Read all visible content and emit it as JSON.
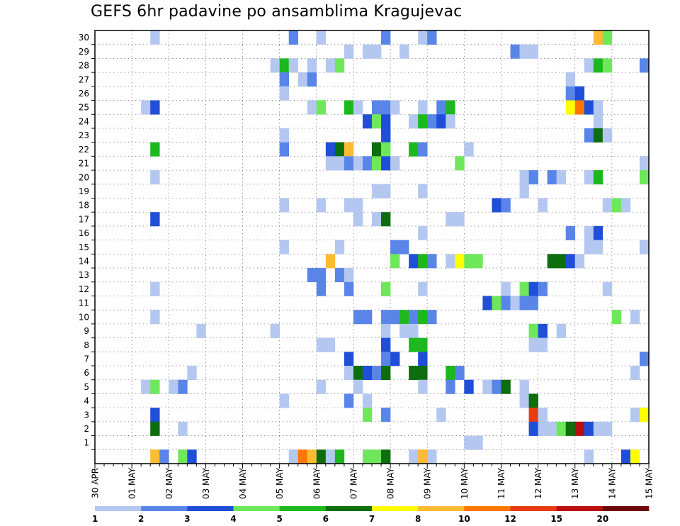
{
  "chart_data": {
    "type": "heatmap",
    "title": "GEFS 6hr padavine po ansamblima Kragujevac",
    "xlabel": "",
    "ylabel": "",
    "y_categories": [
      "",
      "1",
      "2",
      "3",
      "4",
      "5",
      "6",
      "7",
      "8",
      "9",
      "10",
      "11",
      "12",
      "13",
      "14",
      "15",
      "16",
      "17",
      "18",
      "19",
      "20",
      "21",
      "22",
      "23",
      "24",
      "25",
      "26",
      "27",
      "28",
      "29",
      "30"
    ],
    "x_tick_labels": [
      "30 APR",
      "01 MAY",
      "02 MAY",
      "03 MAY",
      "04 MAY",
      "05 MAY",
      "06 MAY",
      "07 MAY",
      "08 MAY",
      "09 MAY",
      "10 MAY",
      "11 MAY",
      "12 MAY",
      "13 MAY",
      "14 MAY",
      "15 MAY"
    ],
    "x_steps_per_day": 4,
    "x_range_steps": [
      0,
      60
    ],
    "grid": true,
    "colorbar": {
      "placement": "bottom",
      "labels": [
        "1",
        "2",
        "3",
        "4",
        "5",
        "6",
        "7",
        "8",
        "10",
        "12",
        "15",
        "20"
      ],
      "colors": [
        "#b4c7f0",
        "#5a85e8",
        "#1f4fd8",
        "#6ee85a",
        "#1db81d",
        "#0c6e0c",
        "#ffff00",
        "#ffbb33",
        "#ff7700",
        "#e83b10",
        "#b80f0f",
        "#6e0909"
      ]
    },
    "cells": [
      [
        6,
        30,
        1
      ],
      [
        21,
        30,
        2
      ],
      [
        24,
        30,
        1
      ],
      [
        31,
        30,
        2
      ],
      [
        35,
        30,
        1
      ],
      [
        36,
        30,
        2
      ],
      [
        54,
        30,
        8
      ],
      [
        55,
        30,
        4
      ],
      [
        27,
        29,
        1
      ],
      [
        29,
        29,
        1
      ],
      [
        30,
        29,
        1
      ],
      [
        33,
        29,
        1
      ],
      [
        45,
        29,
        2
      ],
      [
        46,
        29,
        1
      ],
      [
        47,
        29,
        1
      ],
      [
        19,
        28,
        1
      ],
      [
        20,
        28,
        5
      ],
      [
        21,
        28,
        1
      ],
      [
        23,
        28,
        1
      ],
      [
        25,
        28,
        1
      ],
      [
        26,
        28,
        4
      ],
      [
        53,
        28,
        1
      ],
      [
        54,
        28,
        5
      ],
      [
        55,
        28,
        4
      ],
      [
        59,
        28,
        2
      ],
      [
        20,
        27,
        2
      ],
      [
        22,
        27,
        1
      ],
      [
        23,
        27,
        2
      ],
      [
        51,
        27,
        1
      ],
      [
        20,
        26,
        1
      ],
      [
        51,
        26,
        2
      ],
      [
        52,
        26,
        3
      ],
      [
        5,
        25,
        1
      ],
      [
        6,
        25,
        3
      ],
      [
        23,
        25,
        1
      ],
      [
        24,
        25,
        4
      ],
      [
        27,
        25,
        5
      ],
      [
        28,
        25,
        1
      ],
      [
        30,
        25,
        2
      ],
      [
        31,
        25,
        2
      ],
      [
        32,
        25,
        1
      ],
      [
        35,
        25,
        1
      ],
      [
        37,
        25,
        2
      ],
      [
        38,
        25,
        5
      ],
      [
        51,
        25,
        7
      ],
      [
        52,
        25,
        9
      ],
      [
        53,
        25,
        3
      ],
      [
        54,
        25,
        1
      ],
      [
        29,
        24,
        3
      ],
      [
        30,
        24,
        4
      ],
      [
        31,
        24,
        3
      ],
      [
        34,
        24,
        1
      ],
      [
        35,
        24,
        5
      ],
      [
        36,
        24,
        2
      ],
      [
        37,
        24,
        3
      ],
      [
        38,
        24,
        1
      ],
      [
        54,
        24,
        1
      ],
      [
        20,
        23,
        1
      ],
      [
        31,
        23,
        3
      ],
      [
        53,
        23,
        2
      ],
      [
        54,
        23,
        6
      ],
      [
        55,
        23,
        1
      ],
      [
        6,
        22,
        5
      ],
      [
        20,
        22,
        2
      ],
      [
        25,
        22,
        3
      ],
      [
        26,
        22,
        6
      ],
      [
        27,
        22,
        8
      ],
      [
        30,
        22,
        6
      ],
      [
        31,
        22,
        4
      ],
      [
        34,
        22,
        5
      ],
      [
        35,
        22,
        2
      ],
      [
        40,
        22,
        1
      ],
      [
        25,
        21,
        1
      ],
      [
        26,
        21,
        1
      ],
      [
        27,
        21,
        2
      ],
      [
        28,
        21,
        1
      ],
      [
        29,
        21,
        2
      ],
      [
        30,
        21,
        4
      ],
      [
        31,
        21,
        3
      ],
      [
        32,
        21,
        1
      ],
      [
        39,
        21,
        4
      ],
      [
        59,
        21,
        1
      ],
      [
        6,
        20,
        1
      ],
      [
        46,
        20,
        1
      ],
      [
        47,
        20,
        2
      ],
      [
        49,
        20,
        2
      ],
      [
        50,
        20,
        1
      ],
      [
        53,
        20,
        1
      ],
      [
        54,
        20,
        5
      ],
      [
        59,
        20,
        4
      ],
      [
        30,
        19,
        1
      ],
      [
        31,
        19,
        1
      ],
      [
        35,
        19,
        1
      ],
      [
        46,
        19,
        1
      ],
      [
        20,
        18,
        1
      ],
      [
        24,
        18,
        1
      ],
      [
        27,
        18,
        1
      ],
      [
        28,
        18,
        1
      ],
      [
        43,
        18,
        3
      ],
      [
        44,
        18,
        2
      ],
      [
        48,
        18,
        1
      ],
      [
        55,
        18,
        1
      ],
      [
        56,
        18,
        4
      ],
      [
        57,
        18,
        1
      ],
      [
        6,
        17,
        3
      ],
      [
        28,
        17,
        1
      ],
      [
        30,
        17,
        1
      ],
      [
        31,
        17,
        6
      ],
      [
        38,
        17,
        1
      ],
      [
        39,
        17,
        1
      ],
      [
        35,
        16,
        1
      ],
      [
        51,
        16,
        2
      ],
      [
        53,
        16,
        1
      ],
      [
        54,
        16,
        3
      ],
      [
        20,
        15,
        1
      ],
      [
        26,
        15,
        1
      ],
      [
        32,
        15,
        2
      ],
      [
        33,
        15,
        2
      ],
      [
        53,
        15,
        1
      ],
      [
        54,
        15,
        1
      ],
      [
        59,
        15,
        1
      ],
      [
        25,
        14,
        8
      ],
      [
        32,
        14,
        4
      ],
      [
        34,
        14,
        3
      ],
      [
        35,
        14,
        5
      ],
      [
        36,
        14,
        2
      ],
      [
        38,
        14,
        1
      ],
      [
        39,
        14,
        7
      ],
      [
        40,
        14,
        4
      ],
      [
        41,
        14,
        4
      ],
      [
        49,
        14,
        6
      ],
      [
        50,
        14,
        6
      ],
      [
        51,
        14,
        3
      ],
      [
        52,
        14,
        1
      ],
      [
        23,
        13,
        2
      ],
      [
        24,
        13,
        2
      ],
      [
        26,
        13,
        2
      ],
      [
        27,
        13,
        1
      ],
      [
        6,
        12,
        1
      ],
      [
        24,
        12,
        2
      ],
      [
        27,
        12,
        2
      ],
      [
        31,
        12,
        4
      ],
      [
        35,
        12,
        1
      ],
      [
        44,
        12,
        1
      ],
      [
        46,
        12,
        4
      ],
      [
        47,
        12,
        3
      ],
      [
        48,
        12,
        2
      ],
      [
        55,
        12,
        1
      ],
      [
        42,
        11,
        3
      ],
      [
        43,
        11,
        4
      ],
      [
        44,
        11,
        2
      ],
      [
        45,
        11,
        1
      ],
      [
        46,
        11,
        2
      ],
      [
        47,
        11,
        2
      ],
      [
        6,
        10,
        1
      ],
      [
        28,
        10,
        2
      ],
      [
        29,
        10,
        2
      ],
      [
        31,
        10,
        2
      ],
      [
        32,
        10,
        2
      ],
      [
        33,
        10,
        5
      ],
      [
        34,
        10,
        2
      ],
      [
        35,
        10,
        5
      ],
      [
        36,
        10,
        2
      ],
      [
        56,
        10,
        4
      ],
      [
        58,
        10,
        1
      ],
      [
        11,
        9,
        1
      ],
      [
        19,
        9,
        1
      ],
      [
        31,
        9,
        1
      ],
      [
        33,
        9,
        1
      ],
      [
        34,
        9,
        1
      ],
      [
        47,
        9,
        4
      ],
      [
        48,
        9,
        3
      ],
      [
        50,
        9,
        1
      ],
      [
        24,
        8,
        1
      ],
      [
        25,
        8,
        1
      ],
      [
        31,
        8,
        3
      ],
      [
        34,
        8,
        5
      ],
      [
        35,
        8,
        5
      ],
      [
        47,
        8,
        1
      ],
      [
        48,
        8,
        1
      ],
      [
        27,
        7,
        3
      ],
      [
        31,
        7,
        2
      ],
      [
        32,
        7,
        3
      ],
      [
        35,
        7,
        3
      ],
      [
        59,
        7,
        2
      ],
      [
        10,
        6,
        1
      ],
      [
        27,
        6,
        1
      ],
      [
        28,
        6,
        6
      ],
      [
        29,
        6,
        3
      ],
      [
        30,
        6,
        2
      ],
      [
        31,
        6,
        6
      ],
      [
        34,
        6,
        6
      ],
      [
        35,
        6,
        6
      ],
      [
        38,
        6,
        5
      ],
      [
        39,
        6,
        2
      ],
      [
        58,
        6,
        1
      ],
      [
        5,
        5,
        1
      ],
      [
        6,
        5,
        4
      ],
      [
        8,
        5,
        1
      ],
      [
        9,
        5,
        2
      ],
      [
        24,
        5,
        1
      ],
      [
        28,
        5,
        1
      ],
      [
        35,
        5,
        1
      ],
      [
        38,
        5,
        2
      ],
      [
        40,
        5,
        3
      ],
      [
        42,
        5,
        1
      ],
      [
        43,
        5,
        2
      ],
      [
        44,
        5,
        6
      ],
      [
        46,
        5,
        1
      ],
      [
        20,
        4,
        1
      ],
      [
        27,
        4,
        2
      ],
      [
        29,
        4,
        1
      ],
      [
        46,
        4,
        1
      ],
      [
        47,
        4,
        6
      ],
      [
        6,
        3,
        3
      ],
      [
        29,
        3,
        4
      ],
      [
        31,
        3,
        2
      ],
      [
        37,
        3,
        1
      ],
      [
        47,
        3,
        10
      ],
      [
        48,
        3,
        1
      ],
      [
        58,
        3,
        1
      ],
      [
        59,
        3,
        7
      ],
      [
        6,
        2,
        6
      ],
      [
        9,
        2,
        1
      ],
      [
        47,
        2,
        3
      ],
      [
        48,
        2,
        1
      ],
      [
        49,
        2,
        1
      ],
      [
        50,
        2,
        4
      ],
      [
        51,
        2,
        6
      ],
      [
        52,
        2,
        11
      ],
      [
        53,
        2,
        3
      ],
      [
        54,
        2,
        1
      ],
      [
        55,
        2,
        1
      ],
      [
        40,
        1,
        1
      ],
      [
        41,
        1,
        1
      ],
      [
        6,
        0,
        8
      ],
      [
        7,
        0,
        2
      ],
      [
        9,
        0,
        4
      ],
      [
        10,
        0,
        3
      ],
      [
        21,
        0,
        1
      ],
      [
        22,
        0,
        9
      ],
      [
        23,
        0,
        8
      ],
      [
        24,
        0,
        6
      ],
      [
        25,
        0,
        1
      ],
      [
        26,
        0,
        5
      ],
      [
        29,
        0,
        4
      ],
      [
        30,
        0,
        4
      ],
      [
        31,
        0,
        6
      ],
      [
        34,
        0,
        1
      ],
      [
        35,
        0,
        8
      ],
      [
        36,
        0,
        1
      ],
      [
        53,
        0,
        1
      ],
      [
        57,
        0,
        3
      ],
      [
        58,
        0,
        7
      ]
    ]
  }
}
